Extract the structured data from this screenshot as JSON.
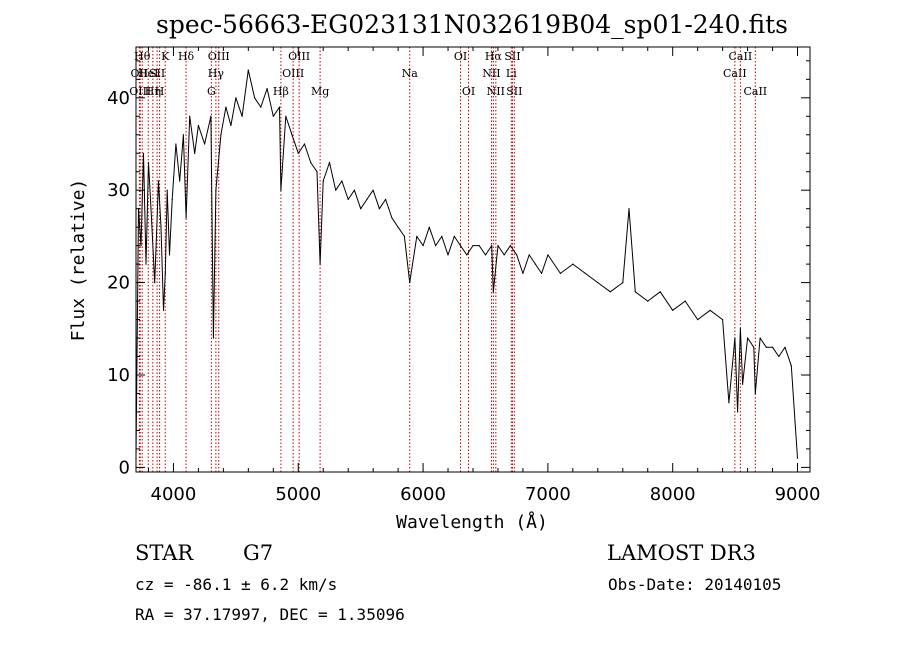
{
  "chart_data": {
    "type": "line",
    "title": "spec-56663-EG023131N032619B04_sp01-240.fits",
    "xlabel": "Wavelength (Å)",
    "ylabel": "Flux (relative)",
    "xlim": [
      3700,
      9100
    ],
    "ylim": [
      -0.5,
      45.5
    ],
    "x_ticks": [
      4000,
      5000,
      6000,
      7000,
      8000,
      9000
    ],
    "y_ticks": [
      0,
      10,
      20,
      30,
      40
    ],
    "grid": false,
    "legend": "none",
    "line_color": "#000000",
    "marker_color": "#c00000",
    "series": [
      {
        "x": [
          3700,
          3720,
          3740,
          3760,
          3780,
          3800,
          3820,
          3850,
          3880,
          3900,
          3920,
          3935,
          3950,
          3968,
          3990,
          4020,
          4050,
          4080,
          4101,
          4130,
          4170,
          4200,
          4250,
          4300,
          4320,
          4340,
          4380,
          4420,
          4460,
          4500,
          4550,
          4600,
          4650,
          4700,
          4750,
          4800,
          4850,
          4861,
          4900,
          4950,
          5000,
          5050,
          5100,
          5150,
          5175,
          5200,
          5250,
          5300,
          5350,
          5400,
          5450,
          5500,
          5550,
          5600,
          5650,
          5700,
          5750,
          5800,
          5850,
          5893,
          5950,
          6000,
          6050,
          6100,
          6150,
          6200,
          6250,
          6300,
          6350,
          6400,
          6450,
          6500,
          6550,
          6563,
          6600,
          6650,
          6700,
          6750,
          6800,
          6850,
          6900,
          6950,
          7000,
          7100,
          7200,
          7300,
          7400,
          7500,
          7600,
          7650,
          7700,
          7800,
          7900,
          8000,
          8100,
          8200,
          8300,
          8400,
          8450,
          8498,
          8520,
          8542,
          8560,
          8600,
          8650,
          8662,
          8700,
          8750,
          8800,
          8850,
          8900,
          8950,
          8980,
          9000
        ],
        "y": [
          1,
          28,
          24,
          34,
          22,
          33,
          28,
          20,
          31,
          26,
          17,
          21,
          30,
          23,
          29,
          35,
          31,
          36,
          27,
          38,
          34,
          37,
          35,
          38,
          14,
          30,
          36,
          39,
          37,
          40,
          38,
          43,
          40,
          39,
          41,
          38,
          39,
          30,
          38,
          36,
          34,
          35,
          33,
          32,
          22,
          31,
          33,
          30,
          31,
          29,
          30,
          28,
          29,
          30,
          28,
          29,
          27,
          26,
          25,
          20,
          25,
          24,
          26,
          24,
          25,
          23,
          25,
          24,
          23,
          24,
          24,
          23,
          24,
          19,
          24,
          23,
          24,
          23,
          21,
          23,
          22,
          21,
          23,
          21,
          22,
          21,
          20,
          19,
          20,
          28,
          19,
          18,
          19,
          17,
          18,
          16,
          17,
          16,
          7,
          14,
          6,
          15,
          9,
          14,
          13,
          8,
          14,
          13,
          13,
          12,
          13,
          11,
          5,
          1
        ]
      }
    ],
    "line_markers": [
      {
        "w": 3727,
        "label": "OII",
        "row": 1
      },
      {
        "w": 3734,
        "label": "OIII",
        "row": 2
      },
      {
        "w": 3750,
        "label": "Hθ",
        "row": 0
      },
      {
        "w": 3798,
        "label": "HeI",
        "row": 1
      },
      {
        "w": 3835,
        "label": "Hη",
        "row": 2
      },
      {
        "w": 3869,
        "label": "SII",
        "row": 1
      },
      {
        "w": 3889,
        "label": "H",
        "row": 2
      },
      {
        "w": 3934,
        "label": "K",
        "row": 0
      },
      {
        "w": 4101,
        "label": "Hδ",
        "row": 0
      },
      {
        "w": 4304,
        "label": "G",
        "row": 2
      },
      {
        "w": 4340,
        "label": "Hγ",
        "row": 1
      },
      {
        "w": 4363,
        "label": "OIII",
        "row": 0
      },
      {
        "w": 4861,
        "label": "Hβ",
        "row": 2
      },
      {
        "w": 4959,
        "label": "OIII",
        "row": 1
      },
      {
        "w": 5007,
        "label": "OIII",
        "row": 0
      },
      {
        "w": 5175,
        "label": "Mg",
        "row": 2
      },
      {
        "w": 5893,
        "label": "Na",
        "row": 1
      },
      {
        "w": 6300,
        "label": "OI",
        "row": 0
      },
      {
        "w": 6364,
        "label": "OI",
        "row": 2
      },
      {
        "w": 6548,
        "label": "NII",
        "row": 1
      },
      {
        "w": 6563,
        "label": "Hα",
        "row": 0
      },
      {
        "w": 6583,
        "label": "NII",
        "row": 2
      },
      {
        "w": 6707,
        "label": "Li",
        "row": 1
      },
      {
        "w": 6716,
        "label": "SII",
        "row": 0
      },
      {
        "w": 6731,
        "label": "SII",
        "row": 2
      },
      {
        "w": 8498,
        "label": "CaII",
        "row": 1
      },
      {
        "w": 8542,
        "label": "CaII",
        "row": 0
      },
      {
        "w": 8662,
        "label": "CaII",
        "row": 2
      }
    ]
  },
  "footer": {
    "object_class": "STAR",
    "subclass": "G7",
    "survey": "LAMOST DR3",
    "redshift": "cz = -86.1 ± 6.2 km/s",
    "obs_date": "Obs-Date: 20140105",
    "coords": "RA =  37.17997, DEC =   1.35096"
  }
}
